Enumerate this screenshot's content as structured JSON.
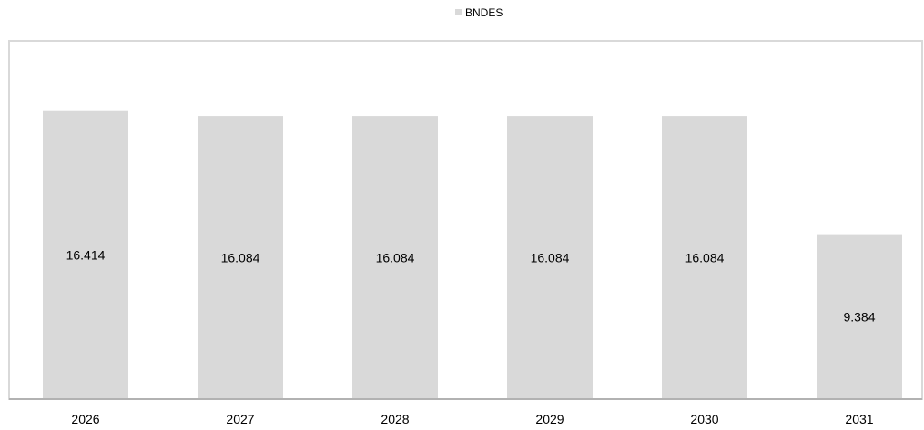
{
  "chart_data": {
    "type": "bar",
    "categories": [
      "2026",
      "2027",
      "2028",
      "2029",
      "2030",
      "2031"
    ],
    "series": [
      {
        "name": "BNDES",
        "values": [
          16.414,
          16.084,
          16.084,
          16.084,
          16.084,
          9.384
        ],
        "data_labels": [
          "16.414",
          "16.084",
          "16.084",
          "16.084",
          "16.084",
          "9.384"
        ],
        "color": "#d9d9d9"
      }
    ],
    "title": "",
    "xlabel": "",
    "ylabel": "",
    "ylim": [
      0,
      18
    ],
    "grid": false,
    "legend": "top-center",
    "colors": {
      "bar": "#d9d9d9",
      "plot_border": "#d9d9d9",
      "axis_line": "#a6a6a6",
      "text": "#000000"
    }
  }
}
